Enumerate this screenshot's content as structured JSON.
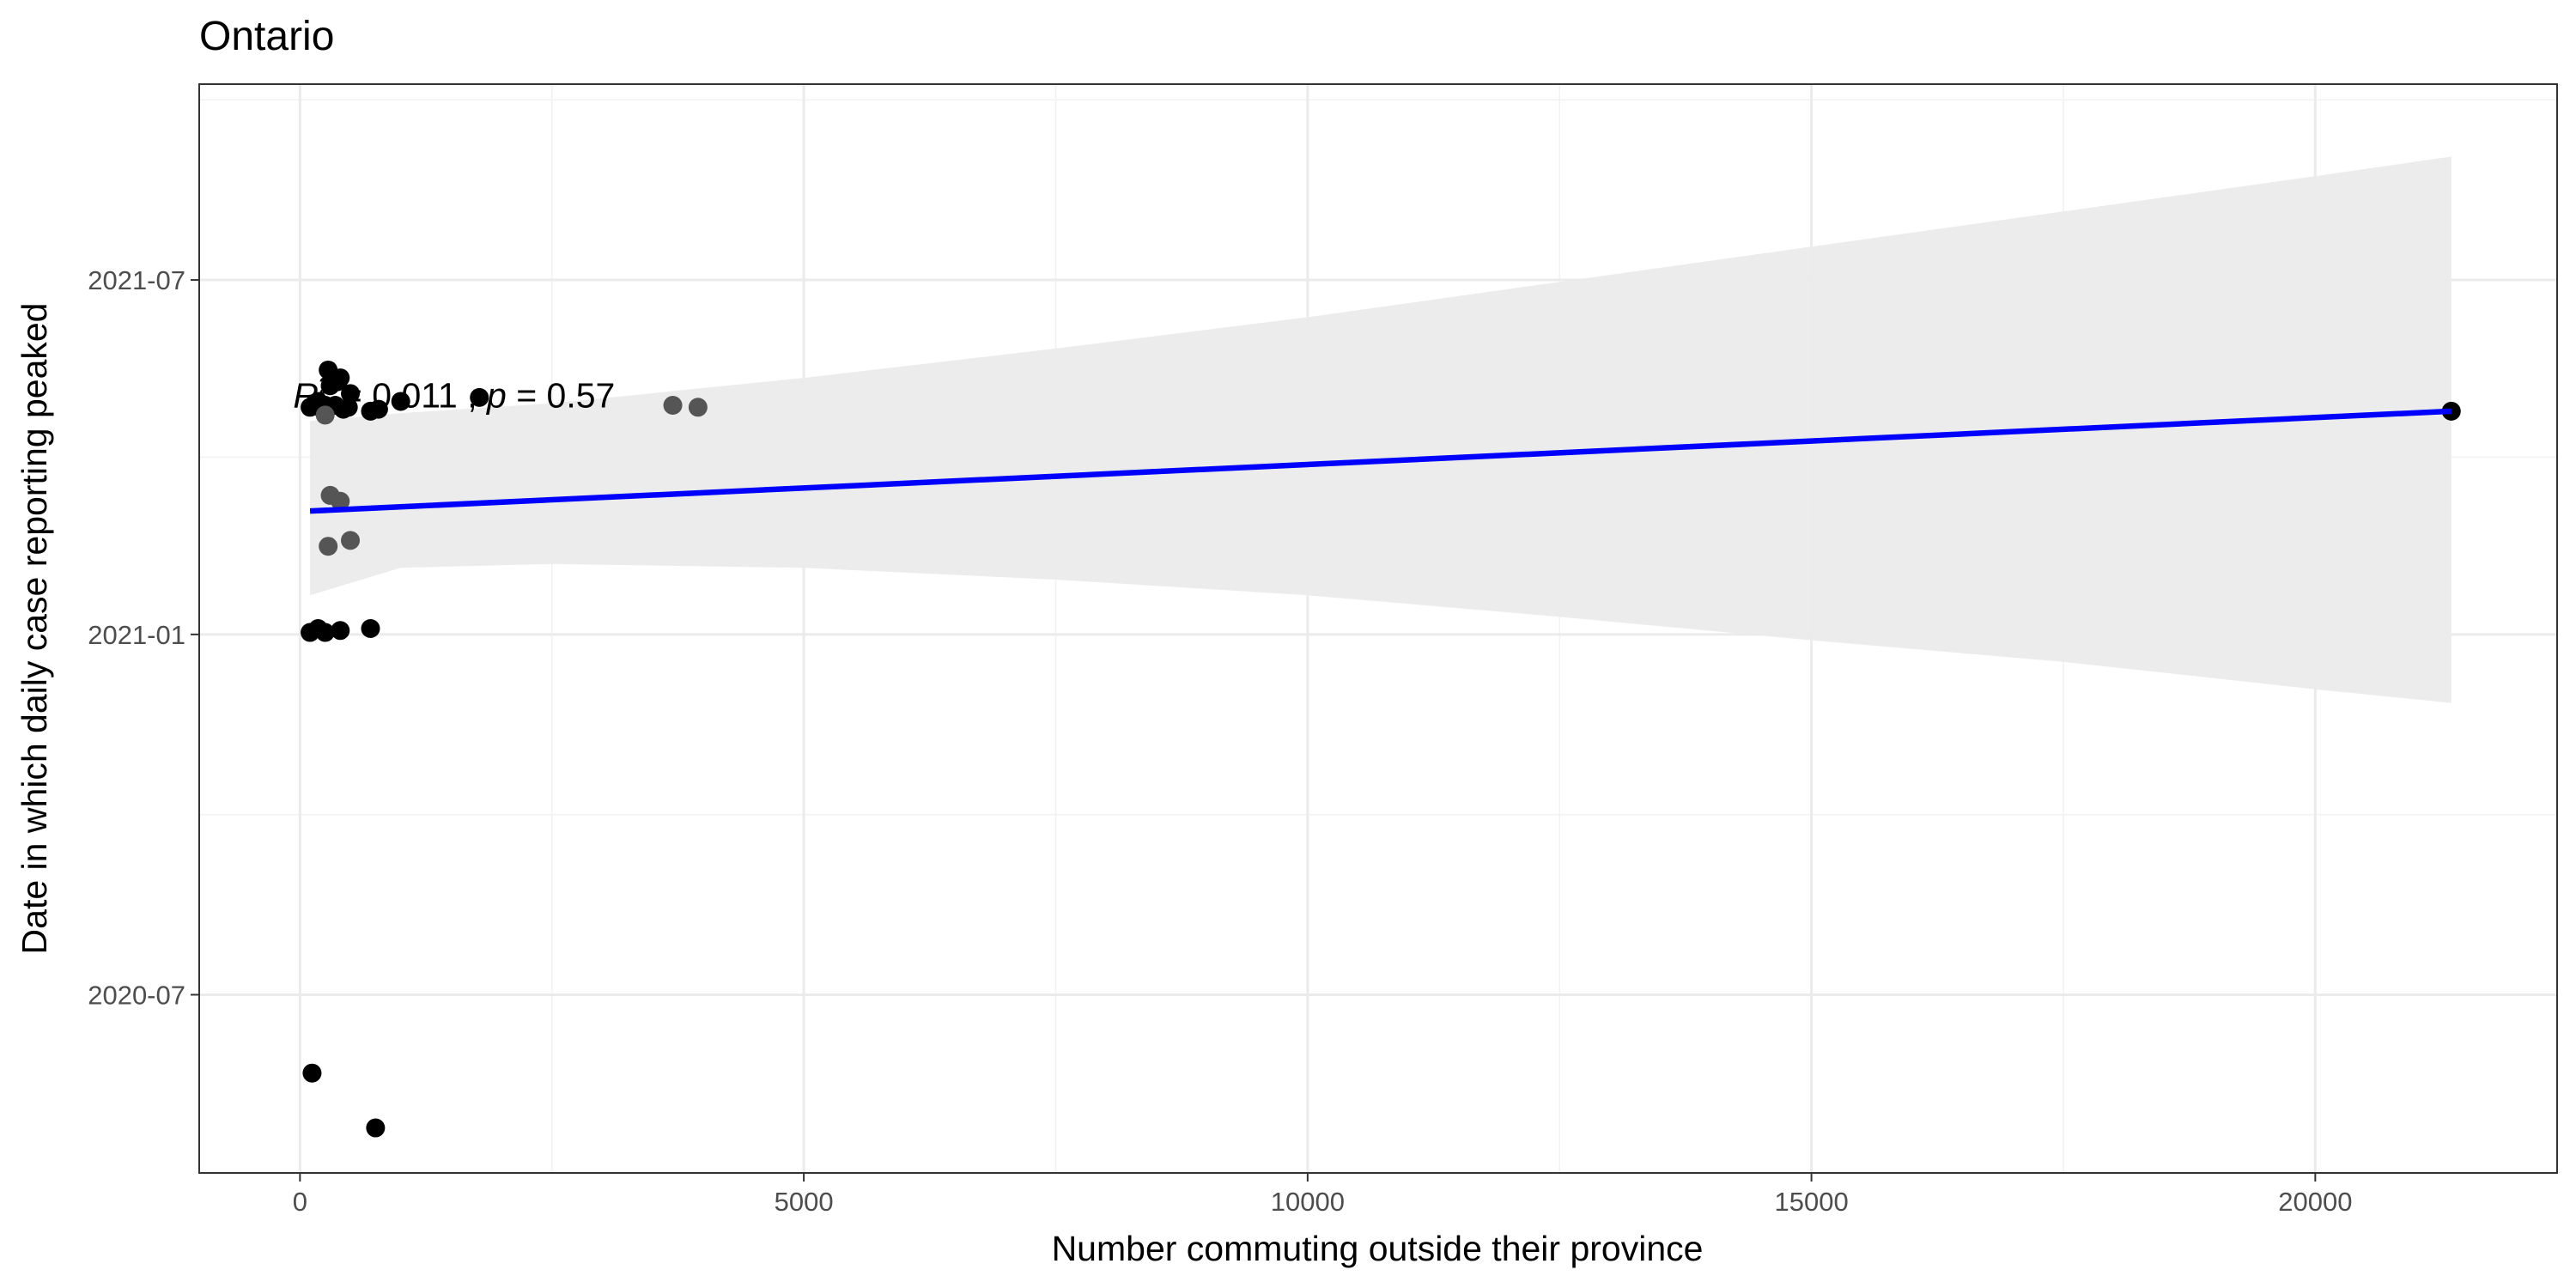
{
  "chart_data": {
    "type": "scatter",
    "title": "Ontario",
    "xlabel": "Number commuting outside their province",
    "ylabel": "Date in which daily case reporting peaked",
    "xlim": [
      -1000,
      22400
    ],
    "ylim": [
      "2020-04-01",
      "2021-10-09"
    ],
    "x_ticks": [
      0,
      5000,
      10000,
      15000,
      20000
    ],
    "x_tick_labels": [
      "0",
      "5000",
      "10000",
      "15000",
      "20000"
    ],
    "y_ticks": [
      "2020-07-01",
      "2021-01-01",
      "2021-07-01"
    ],
    "y_tick_labels": [
      "2020-07",
      "2021-01",
      "2021-07"
    ],
    "grid": true,
    "annotation": {
      "parts": [
        {
          "text": "R",
          "italic": true
        },
        {
          "text": "2",
          "italic": false,
          "superscript": true
        },
        {
          "text": " = 0.011 , ",
          "italic": false
        },
        {
          "text": "p",
          "italic": true
        },
        {
          "text": " = 0.57",
          "italic": false
        }
      ],
      "x": 0,
      "y": "2021-04-27"
    },
    "regression": {
      "color": "#0000ff",
      "line": [
        {
          "x": 100,
          "y": "2021-03-05"
        },
        {
          "x": 21350,
          "y": "2021-04-25"
        }
      ],
      "band_color": "#ebebeb",
      "band": [
        {
          "x": 100,
          "lower": "2021-01-21",
          "upper": "2021-04-20"
        },
        {
          "x": 1000,
          "lower": "2021-02-04",
          "upper": "2021-04-24"
        },
        {
          "x": 2500,
          "lower": "2021-02-06",
          "upper": "2021-04-29"
        },
        {
          "x": 5000,
          "lower": "2021-02-04",
          "upper": "2021-05-12"
        },
        {
          "x": 7500,
          "lower": "2021-01-29",
          "upper": "2021-05-27"
        },
        {
          "x": 10000,
          "lower": "2021-01-21",
          "upper": "2021-06-12"
        },
        {
          "x": 12500,
          "lower": "2021-01-10",
          "upper": "2021-06-30"
        },
        {
          "x": 15000,
          "lower": "2020-12-29",
          "upper": "2021-07-18"
        },
        {
          "x": 17500,
          "lower": "2020-12-18",
          "upper": "2021-08-05"
        },
        {
          "x": 20000,
          "lower": "2020-12-04",
          "upper": "2021-08-23"
        },
        {
          "x": 21350,
          "lower": "2020-11-27",
          "upper": "2021-09-02"
        }
      ]
    },
    "points": [
      {
        "x": 280,
        "y": "2021-05-16",
        "color": "#000000"
      },
      {
        "x": 400,
        "y": "2021-05-12",
        "color": "#000000"
      },
      {
        "x": 370,
        "y": "2021-05-10",
        "color": "#000000"
      },
      {
        "x": 300,
        "y": "2021-05-08",
        "color": "#000000"
      },
      {
        "x": 500,
        "y": "2021-05-04",
        "color": "#000000"
      },
      {
        "x": 1000,
        "y": "2021-04-30",
        "color": "#000000"
      },
      {
        "x": 180,
        "y": "2021-04-30",
        "color": "#000000"
      },
      {
        "x": 350,
        "y": "2021-04-28",
        "color": "#000000"
      },
      {
        "x": 250,
        "y": "2021-04-28",
        "color": "#000000"
      },
      {
        "x": 100,
        "y": "2021-04-27",
        "color": "#000000"
      },
      {
        "x": 200,
        "y": "2021-04-27",
        "color": "#000000"
      },
      {
        "x": 480,
        "y": "2021-04-27",
        "color": "#000000"
      },
      {
        "x": 430,
        "y": "2021-04-26",
        "color": "#000000"
      },
      {
        "x": 780,
        "y": "2021-04-26",
        "color": "#000000"
      },
      {
        "x": 1780,
        "y": "2021-05-02",
        "color": "#000000"
      },
      {
        "x": 700,
        "y": "2021-04-25",
        "color": "#000000"
      },
      {
        "x": 250,
        "y": "2021-04-23",
        "color": "#555555"
      },
      {
        "x": 3700,
        "y": "2021-04-28",
        "color": "#555555"
      },
      {
        "x": 3950,
        "y": "2021-04-27",
        "color": "#555555"
      },
      {
        "x": 21350,
        "y": "2021-04-25",
        "color": "#000000"
      },
      {
        "x": 300,
        "y": "2021-03-13",
        "color": "#555555"
      },
      {
        "x": 400,
        "y": "2021-03-10",
        "color": "#555555"
      },
      {
        "x": 500,
        "y": "2021-02-18",
        "color": "#555555"
      },
      {
        "x": 280,
        "y": "2021-02-15",
        "color": "#555555"
      },
      {
        "x": 700,
        "y": "2021-01-04",
        "color": "#000000"
      },
      {
        "x": 180,
        "y": "2021-01-04",
        "color": "#000000"
      },
      {
        "x": 400,
        "y": "2021-01-03",
        "color": "#000000"
      },
      {
        "x": 250,
        "y": "2021-01-02",
        "color": "#000000"
      },
      {
        "x": 100,
        "y": "2021-01-02",
        "color": "#000000"
      },
      {
        "x": 120,
        "y": "2020-05-22",
        "color": "#000000"
      },
      {
        "x": 750,
        "y": "2020-04-24",
        "color": "#000000"
      }
    ]
  }
}
